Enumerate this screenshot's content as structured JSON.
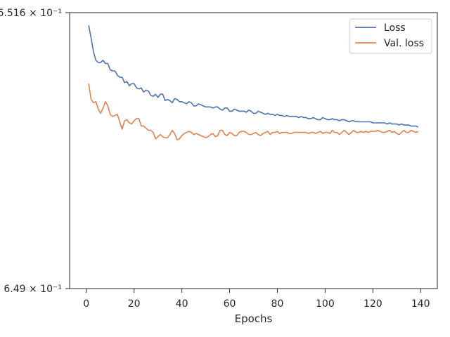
{
  "chart_data": {
    "type": "line",
    "title": "",
    "xlabel": "Epochs",
    "ylabel": "",
    "xlim": [
      -7,
      147
    ],
    "ylim": [
      0.649,
      0.6516
    ],
    "yscale": "log",
    "grid": false,
    "legend_position": "top-right",
    "x_ticks": [
      0,
      20,
      40,
      60,
      80,
      100,
      120,
      140
    ],
    "x_tick_labels": [
      "0",
      "20",
      "40",
      "60",
      "80",
      "100",
      "120",
      "140"
    ],
    "y_tick_labels": [
      {
        "value": 0.6516,
        "label": "6.516 × 10⁻¹"
      },
      {
        "value": 0.649,
        "label": "6.49 × 10⁻¹"
      }
    ],
    "x": [
      1,
      2,
      3,
      4,
      5,
      6,
      7,
      8,
      9,
      10,
      11,
      12,
      13,
      14,
      15,
      16,
      17,
      18,
      19,
      20,
      21,
      22,
      23,
      24,
      25,
      26,
      27,
      28,
      29,
      30,
      31,
      32,
      33,
      34,
      35,
      36,
      37,
      38,
      39,
      40,
      41,
      42,
      43,
      44,
      45,
      46,
      47,
      48,
      49,
      50,
      51,
      52,
      53,
      54,
      55,
      56,
      57,
      58,
      59,
      60,
      61,
      62,
      63,
      64,
      65,
      66,
      67,
      68,
      69,
      70,
      71,
      72,
      73,
      74,
      75,
      76,
      77,
      78,
      79,
      80,
      81,
      82,
      83,
      84,
      85,
      86,
      87,
      88,
      89,
      90,
      91,
      92,
      93,
      94,
      95,
      96,
      97,
      98,
      99,
      100,
      101,
      102,
      103,
      104,
      105,
      106,
      107,
      108,
      109,
      110,
      111,
      112,
      113,
      114,
      115,
      116,
      117,
      118,
      119,
      120,
      121,
      122,
      123,
      124,
      125,
      126,
      127,
      128,
      129,
      130,
      131,
      132,
      133,
      134,
      135,
      136,
      137,
      138,
      139
    ],
    "series": [
      {
        "name": "Loss",
        "color": "#4c72b0",
        "values": [
          0.65148,
          0.65136,
          0.65123,
          0.65115,
          0.65113,
          0.65113,
          0.65115,
          0.65112,
          0.65112,
          0.65106,
          0.65105,
          0.65105,
          0.65101,
          0.65099,
          0.65099,
          0.65094,
          0.65095,
          0.65091,
          0.65093,
          0.65093,
          0.65089,
          0.65088,
          0.65089,
          0.65085,
          0.65087,
          0.65086,
          0.65082,
          0.65081,
          0.65083,
          0.6508,
          0.65083,
          0.65083,
          0.65077,
          0.65078,
          0.65077,
          0.65075,
          0.65079,
          0.65078,
          0.65076,
          0.65076,
          0.65075,
          0.65074,
          0.65076,
          0.65075,
          0.65072,
          0.65072,
          0.65074,
          0.65073,
          0.65072,
          0.65071,
          0.65071,
          0.65071,
          0.6507,
          0.65071,
          0.65071,
          0.65069,
          0.65068,
          0.6507,
          0.6507,
          0.65067,
          0.65067,
          0.65069,
          0.65068,
          0.65067,
          0.65067,
          0.65067,
          0.65066,
          0.65068,
          0.65067,
          0.65065,
          0.65065,
          0.65067,
          0.65066,
          0.65065,
          0.65064,
          0.65065,
          0.65064,
          0.65064,
          0.65063,
          0.65064,
          0.65063,
          0.65063,
          0.65062,
          0.65063,
          0.65062,
          0.65062,
          0.65062,
          0.65062,
          0.65061,
          0.65062,
          0.65061,
          0.65061,
          0.6506,
          0.6506,
          0.65061,
          0.6506,
          0.65059,
          0.65059,
          0.65061,
          0.6506,
          0.65059,
          0.65059,
          0.6506,
          0.65059,
          0.65059,
          0.65058,
          0.65059,
          0.65059,
          0.65058,
          0.65057,
          0.65058,
          0.65058,
          0.65057,
          0.65057,
          0.65057,
          0.65057,
          0.65057,
          0.65057,
          0.65057,
          0.65056,
          0.65056,
          0.65056,
          0.65056,
          0.65056,
          0.65056,
          0.65055,
          0.65056,
          0.65055,
          0.65055,
          0.65055,
          0.65054,
          0.65055,
          0.65054,
          0.65054,
          0.65054,
          0.65053,
          0.65053,
          0.65053,
          0.65052
        ]
      },
      {
        "name": "Val. loss",
        "color": "#dd8452",
        "values": [
          0.65093,
          0.65078,
          0.65075,
          0.65076,
          0.65069,
          0.65065,
          0.6507,
          0.65076,
          0.65072,
          0.65064,
          0.65062,
          0.65063,
          0.65064,
          0.65057,
          0.6505,
          0.65058,
          0.65059,
          0.65056,
          0.65055,
          0.65058,
          0.6506,
          0.6506,
          0.65053,
          0.65053,
          0.65051,
          0.65049,
          0.65049,
          0.65047,
          0.65041,
          0.65043,
          0.65045,
          0.65043,
          0.65042,
          0.65042,
          0.65045,
          0.65049,
          0.65046,
          0.6504,
          0.65041,
          0.65044,
          0.65046,
          0.65047,
          0.65048,
          0.65047,
          0.65045,
          0.65046,
          0.65045,
          0.65044,
          0.65043,
          0.65042,
          0.65043,
          0.65045,
          0.65046,
          0.65043,
          0.65044,
          0.65049,
          0.65049,
          0.65045,
          0.65044,
          0.65047,
          0.65046,
          0.65044,
          0.65044,
          0.65047,
          0.65048,
          0.65048,
          0.65047,
          0.65045,
          0.65045,
          0.65046,
          0.65047,
          0.65045,
          0.65044,
          0.65046,
          0.65047,
          0.65048,
          0.65045,
          0.65047,
          0.65047,
          0.65048,
          0.65046,
          0.65047,
          0.65047,
          0.65047,
          0.65046,
          0.65046,
          0.65047,
          0.65047,
          0.65047,
          0.65047,
          0.65047,
          0.65047,
          0.65046,
          0.65047,
          0.65047,
          0.65046,
          0.65047,
          0.65048,
          0.65046,
          0.65047,
          0.65047,
          0.65046,
          0.65049,
          0.65047,
          0.65047,
          0.65045,
          0.65047,
          0.65049,
          0.65047,
          0.65045,
          0.65047,
          0.65049,
          0.65047,
          0.65047,
          0.65048,
          0.65047,
          0.65048,
          0.65047,
          0.65048,
          0.65048,
          0.65048,
          0.65049,
          0.65048,
          0.65047,
          0.65047,
          0.65048,
          0.65049,
          0.65047,
          0.65048,
          0.65046,
          0.65045,
          0.65047,
          0.65049,
          0.65047,
          0.65047,
          0.65049,
          0.65048,
          0.65047,
          0.65048
        ]
      }
    ]
  }
}
